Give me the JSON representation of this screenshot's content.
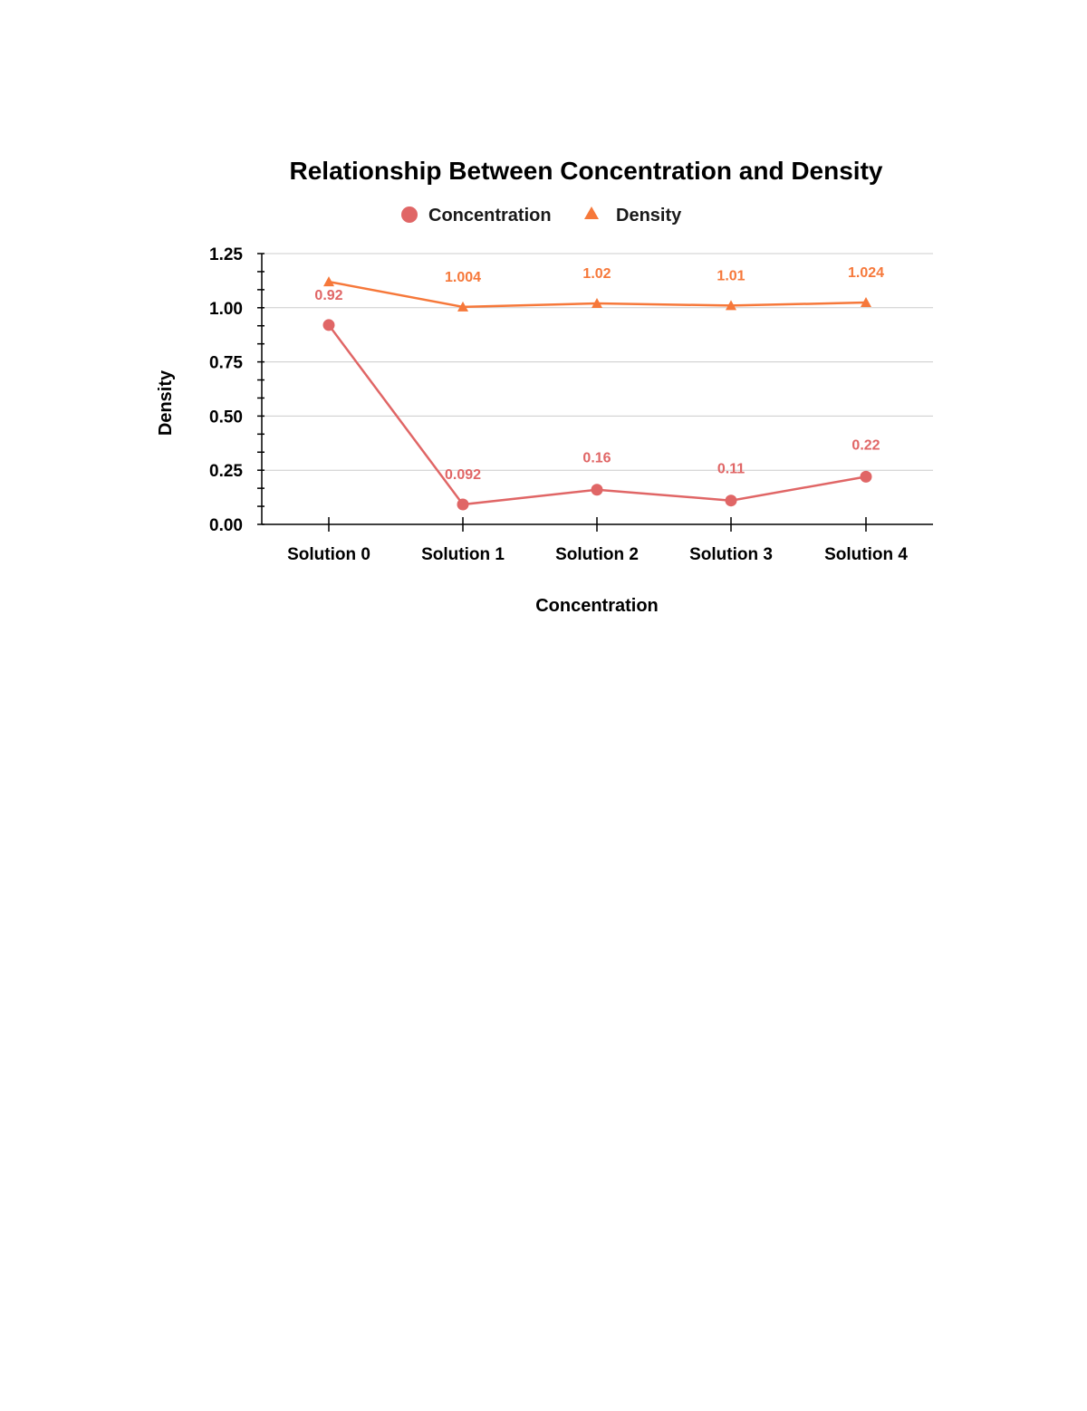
{
  "chart_data": {
    "type": "line",
    "title": "Relationship Between Concentration and Density",
    "xlabel": "Concentration",
    "ylabel": "Density",
    "categories": [
      "Solution 0",
      "Solution 1",
      "Solution 2",
      "Solution 3",
      "Solution 4"
    ],
    "ylim": [
      0,
      1.25
    ],
    "yticks": [
      "0.00",
      "0.25",
      "0.50",
      "0.75",
      "1.00",
      "1.25"
    ],
    "grid": true,
    "legend_position": "top",
    "series": [
      {
        "name": "Concentration",
        "marker": "circle",
        "color": "#e06666",
        "values": [
          0.92,
          0.092,
          0.16,
          0.11,
          0.22
        ],
        "labels": [
          "0.92",
          "0.092",
          "0.16",
          "0.11",
          "0.22"
        ]
      },
      {
        "name": "Density",
        "marker": "triangle",
        "color": "#f6783a",
        "values": [
          1.12,
          1.004,
          1.02,
          1.01,
          1.024
        ],
        "labels": [
          "",
          "1.004",
          "1.02",
          "1.01",
          "1.024"
        ]
      }
    ]
  }
}
